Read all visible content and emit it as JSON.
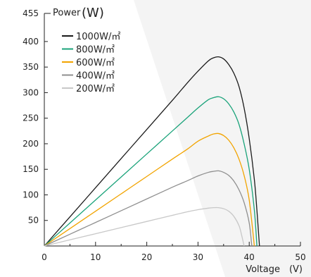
{
  "chart_data": {
    "type": "line",
    "title": "",
    "ylabel_prefix": "Power",
    "ylabel_unit": "(W)",
    "xlabel": "Voltage　(V)",
    "xlim": [
      0,
      50
    ],
    "ylim": [
      0,
      455
    ],
    "x_ticks": [
      0,
      10,
      20,
      30,
      40,
      50
    ],
    "y_ticks": [
      50,
      100,
      150,
      200,
      250,
      300,
      350,
      400,
      455
    ],
    "grid": false,
    "legend_position": "top-left",
    "series": [
      {
        "name": "1000W/㎡",
        "color": "#1a1a1a",
        "x": [
          0,
          5,
          10,
          15,
          20,
          25,
          28,
          30,
          32,
          33,
          34,
          35,
          36,
          37,
          38,
          39,
          40,
          41,
          41.5,
          42
        ],
        "y": [
          0,
          57,
          114,
          171,
          228,
          285,
          320,
          342,
          362,
          368,
          370,
          366,
          355,
          338,
          312,
          270,
          210,
          130,
          70,
          0
        ]
      },
      {
        "name": "800W/㎡",
        "color": "#1aa37a",
        "x": [
          0,
          5,
          10,
          15,
          20,
          25,
          28,
          30,
          32,
          33,
          34,
          35,
          36,
          37,
          38,
          39,
          40,
          41,
          41.5
        ],
        "y": [
          0,
          45,
          90,
          135,
          180,
          225,
          252,
          270,
          286,
          290,
          292,
          288,
          278,
          262,
          238,
          200,
          150,
          70,
          0
        ]
      },
      {
        "name": "600W/㎡",
        "color": "#f2a400",
        "x": [
          0,
          5,
          10,
          15,
          20,
          25,
          28,
          30,
          32,
          33,
          34,
          35,
          36,
          37,
          38,
          39,
          40,
          41
        ],
        "y": [
          0,
          34,
          68,
          102,
          136,
          170,
          190,
          205,
          215,
          219,
          220,
          216,
          207,
          192,
          170,
          138,
          90,
          0
        ]
      },
      {
        "name": "400W/㎡",
        "color": "#8f8f8f",
        "x": [
          0,
          5,
          10,
          15,
          20,
          25,
          28,
          30,
          32,
          33,
          34,
          35,
          36,
          37,
          38,
          39,
          40,
          40.5
        ],
        "y": [
          0,
          23,
          46,
          69,
          92,
          115,
          128,
          137,
          144,
          146,
          147,
          144,
          138,
          127,
          110,
          85,
          45,
          0
        ]
      },
      {
        "name": "200W/㎡",
        "color": "#c8c8c8",
        "x": [
          0,
          5,
          10,
          15,
          20,
          25,
          28,
          30,
          32,
          33,
          34,
          35,
          36,
          37,
          38,
          38.5,
          39
        ],
        "y": [
          0,
          12,
          24,
          36,
          48,
          60,
          67,
          71,
          74,
          75,
          75,
          73,
          68,
          58,
          40,
          22,
          0
        ]
      }
    ]
  }
}
